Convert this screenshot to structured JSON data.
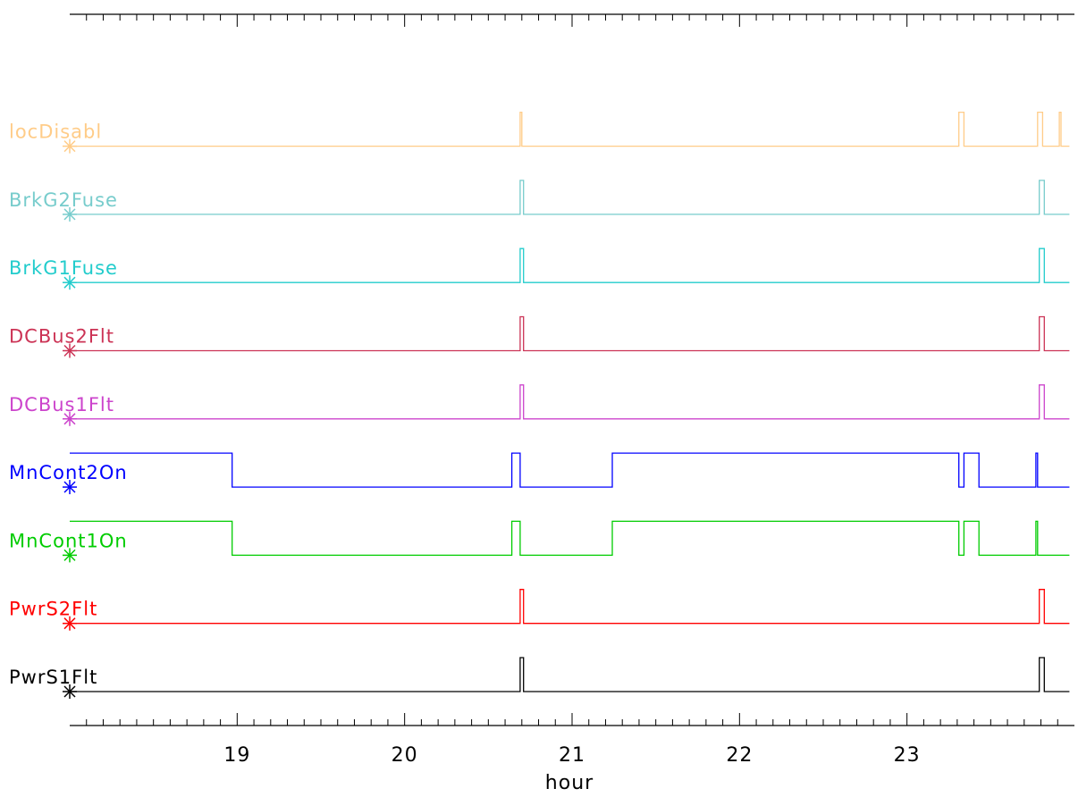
{
  "chart_data": {
    "type": "line",
    "xlabel": "hour",
    "xlim": [
      18.0,
      24.0
    ],
    "x_tick_labels": [
      "19",
      "20",
      "21",
      "22",
      "23"
    ],
    "x_tick_values": [
      19,
      20,
      21,
      22,
      23
    ],
    "minor_tick_step": 0.1,
    "series": [
      {
        "name": "PwrS1Flt",
        "color": "#000000",
        "points": [
          [
            18.0,
            0
          ],
          [
            20.69,
            0
          ],
          [
            20.69,
            1
          ],
          [
            20.71,
            1
          ],
          [
            20.71,
            0
          ],
          [
            23.79,
            0
          ],
          [
            23.79,
            1
          ],
          [
            23.82,
            1
          ],
          [
            23.82,
            0
          ],
          [
            23.97,
            0
          ]
        ]
      },
      {
        "name": "PwrS2Flt",
        "color": "#ff0000",
        "points": [
          [
            18.0,
            0
          ],
          [
            20.69,
            0
          ],
          [
            20.69,
            1
          ],
          [
            20.71,
            1
          ],
          [
            20.71,
            0
          ],
          [
            23.79,
            0
          ],
          [
            23.79,
            1
          ],
          [
            23.82,
            1
          ],
          [
            23.82,
            0
          ],
          [
            23.97,
            0
          ]
        ]
      },
      {
        "name": "MnCont1On",
        "color": "#00cc00",
        "points": [
          [
            18.0,
            1
          ],
          [
            18.97,
            1
          ],
          [
            18.97,
            0
          ],
          [
            20.64,
            0
          ],
          [
            20.64,
            1
          ],
          [
            20.69,
            1
          ],
          [
            20.69,
            0
          ],
          [
            21.24,
            0
          ],
          [
            21.24,
            1
          ],
          [
            23.31,
            1
          ],
          [
            23.31,
            0
          ],
          [
            23.34,
            0
          ],
          [
            23.34,
            1
          ],
          [
            23.43,
            1
          ],
          [
            23.43,
            0
          ],
          [
            23.77,
            0
          ],
          [
            23.77,
            1
          ],
          [
            23.78,
            1
          ],
          [
            23.78,
            0
          ],
          [
            23.97,
            0
          ]
        ]
      },
      {
        "name": "MnCont2On",
        "color": "#0000ff",
        "points": [
          [
            18.0,
            1
          ],
          [
            18.97,
            1
          ],
          [
            18.97,
            0
          ],
          [
            20.64,
            0
          ],
          [
            20.64,
            1
          ],
          [
            20.69,
            1
          ],
          [
            20.69,
            0
          ],
          [
            21.24,
            0
          ],
          [
            21.24,
            1
          ],
          [
            23.31,
            1
          ],
          [
            23.31,
            0
          ],
          [
            23.34,
            0
          ],
          [
            23.34,
            1
          ],
          [
            23.43,
            1
          ],
          [
            23.43,
            0
          ],
          [
            23.77,
            0
          ],
          [
            23.77,
            1
          ],
          [
            23.78,
            1
          ],
          [
            23.78,
            0
          ],
          [
            23.97,
            0
          ]
        ]
      },
      {
        "name": "DCBus1Flt",
        "color": "#cc44cc",
        "points": [
          [
            18.0,
            0
          ],
          [
            20.69,
            0
          ],
          [
            20.69,
            1
          ],
          [
            20.71,
            1
          ],
          [
            20.71,
            0
          ],
          [
            23.79,
            0
          ],
          [
            23.79,
            1
          ],
          [
            23.82,
            1
          ],
          [
            23.82,
            0
          ],
          [
            23.97,
            0
          ]
        ]
      },
      {
        "name": "DCBus2Flt",
        "color": "#cc3355",
        "points": [
          [
            18.0,
            0
          ],
          [
            20.69,
            0
          ],
          [
            20.69,
            1
          ],
          [
            20.71,
            1
          ],
          [
            20.71,
            0
          ],
          [
            23.79,
            0
          ],
          [
            23.79,
            1
          ],
          [
            23.82,
            1
          ],
          [
            23.82,
            0
          ],
          [
            23.97,
            0
          ]
        ]
      },
      {
        "name": "BrkG1Fuse",
        "color": "#22cccc",
        "points": [
          [
            18.0,
            0
          ],
          [
            20.69,
            0
          ],
          [
            20.69,
            1
          ],
          [
            20.71,
            1
          ],
          [
            20.71,
            0
          ],
          [
            23.79,
            0
          ],
          [
            23.79,
            1
          ],
          [
            23.82,
            1
          ],
          [
            23.82,
            0
          ],
          [
            23.97,
            0
          ]
        ]
      },
      {
        "name": "BrkG2Fuse",
        "color": "#77cccc",
        "points": [
          [
            18.0,
            0
          ],
          [
            20.69,
            0
          ],
          [
            20.69,
            1
          ],
          [
            20.71,
            1
          ],
          [
            20.71,
            0
          ],
          [
            23.79,
            0
          ],
          [
            23.79,
            1
          ],
          [
            23.82,
            1
          ],
          [
            23.82,
            0
          ],
          [
            23.97,
            0
          ]
        ]
      },
      {
        "name": "locDisabl",
        "color": "#ffcc88",
        "points": [
          [
            18.0,
            0
          ],
          [
            20.69,
            0
          ],
          [
            20.69,
            1
          ],
          [
            20.7,
            1
          ],
          [
            20.7,
            0
          ],
          [
            23.31,
            0
          ],
          [
            23.31,
            1
          ],
          [
            23.34,
            1
          ],
          [
            23.34,
            0
          ],
          [
            23.78,
            0
          ],
          [
            23.78,
            1
          ],
          [
            23.81,
            1
          ],
          [
            23.81,
            0
          ],
          [
            23.91,
            0
          ],
          [
            23.91,
            1
          ],
          [
            23.92,
            1
          ],
          [
            23.92,
            0
          ],
          [
            23.97,
            0
          ]
        ]
      }
    ]
  }
}
